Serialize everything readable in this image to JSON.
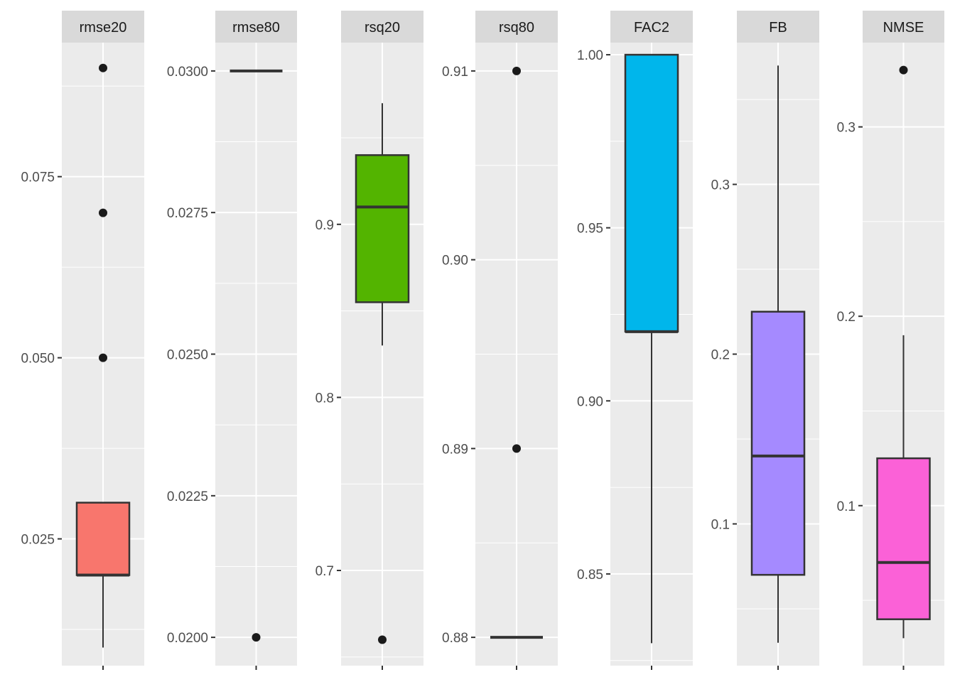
{
  "chart_data": {
    "type": "boxplot",
    "layout": "facets with free y scales",
    "grid": true,
    "legend": "none",
    "panels": [
      {
        "strip": "rmse20",
        "fill": "#F8766D",
        "ylim": [
          0.0075,
          0.0935
        ],
        "ticks": [
          "0.025",
          "0.050",
          "0.075"
        ],
        "tick_values": [
          0.025,
          0.05,
          0.075
        ],
        "minor_ticks": [
          0.0125,
          0.0375,
          0.0625,
          0.0875
        ],
        "box": {
          "lower_whisker": 0.01,
          "q1": 0.02,
          "median": 0.02,
          "q3": 0.03,
          "upper_whisker": 0.03
        },
        "outliers": [
          0.05,
          0.07,
          0.09
        ]
      },
      {
        "strip": "rmse80",
        "fill": "#C49A00",
        "ylim": [
          0.0195,
          0.0305
        ],
        "ticks": [
          "0.0200",
          "0.0225",
          "0.0250",
          "0.0275",
          "0.0300"
        ],
        "tick_values": [
          0.02,
          0.0225,
          0.025,
          0.0275,
          0.03
        ],
        "minor_ticks": [
          0.02125,
          0.02375,
          0.02625,
          0.02875
        ],
        "box": {
          "lower_whisker": 0.03,
          "q1": 0.03,
          "median": 0.03,
          "q3": 0.03,
          "upper_whisker": 0.03
        },
        "outliers": [
          0.02
        ]
      },
      {
        "strip": "rsq20",
        "fill": "#53B400",
        "ylim": [
          0.645,
          1.005
        ],
        "ticks": [
          "0.7",
          "0.8",
          "0.9"
        ],
        "tick_values": [
          0.7,
          0.8,
          0.9
        ],
        "minor_ticks": [
          0.65,
          0.75,
          0.85,
          0.95
        ],
        "box": {
          "lower_whisker": 0.83,
          "q1": 0.855,
          "median": 0.91,
          "q3": 0.94,
          "upper_whisker": 0.97
        },
        "outliers": [
          0.66
        ]
      },
      {
        "strip": "rsq80",
        "fill": "#00C094",
        "ylim": [
          0.8785,
          0.9115
        ],
        "ticks": [
          "0.88",
          "0.89",
          "0.90",
          "0.91"
        ],
        "tick_values": [
          0.88,
          0.89,
          0.9,
          0.91
        ],
        "minor_ticks": [
          0.885,
          0.895,
          0.905
        ],
        "box": {
          "lower_whisker": 0.88,
          "q1": 0.88,
          "median": 0.88,
          "q3": 0.88,
          "upper_whisker": 0.88
        },
        "outliers": [
          0.89,
          0.91
        ]
      },
      {
        "strip": "FAC2",
        "fill": "#00B6EB",
        "ylim": [
          0.8235,
          1.0035
        ],
        "ticks": [
          "0.85",
          "0.90",
          "0.95",
          "1.00"
        ],
        "tick_values": [
          0.85,
          0.9,
          0.95,
          1.0
        ],
        "minor_ticks": [
          0.825,
          0.875,
          0.925,
          0.975
        ],
        "box": {
          "lower_whisker": 0.83,
          "q1": 0.92,
          "median": 0.92,
          "q3": 1.0,
          "upper_whisker": 1.0
        },
        "outliers": []
      },
      {
        "strip": "FB",
        "fill": "#A58AFF",
        "ylim": [
          0.0165,
          0.3835
        ],
        "ticks": [
          "0.1",
          "0.2",
          "0.3"
        ],
        "tick_values": [
          0.1,
          0.2,
          0.3
        ],
        "minor_ticks": [
          0.05,
          0.15,
          0.25,
          0.35
        ],
        "box": {
          "lower_whisker": 0.03,
          "q1": 0.07,
          "median": 0.14,
          "q3": 0.225,
          "upper_whisker": 0.37
        },
        "outliers": []
      },
      {
        "strip": "NMSE",
        "fill": "#FB61D7",
        "ylim": [
          0.0155,
          0.3445
        ],
        "ticks": [
          "0.1",
          "0.2",
          "0.3"
        ],
        "tick_values": [
          0.1,
          0.2,
          0.3
        ],
        "minor_ticks": [
          0.05,
          0.15,
          0.25
        ],
        "box": {
          "lower_whisker": 0.03,
          "q1": 0.04,
          "median": 0.07,
          "q3": 0.125,
          "upper_whisker": 0.19
        },
        "outliers": [
          0.33
        ]
      }
    ]
  }
}
